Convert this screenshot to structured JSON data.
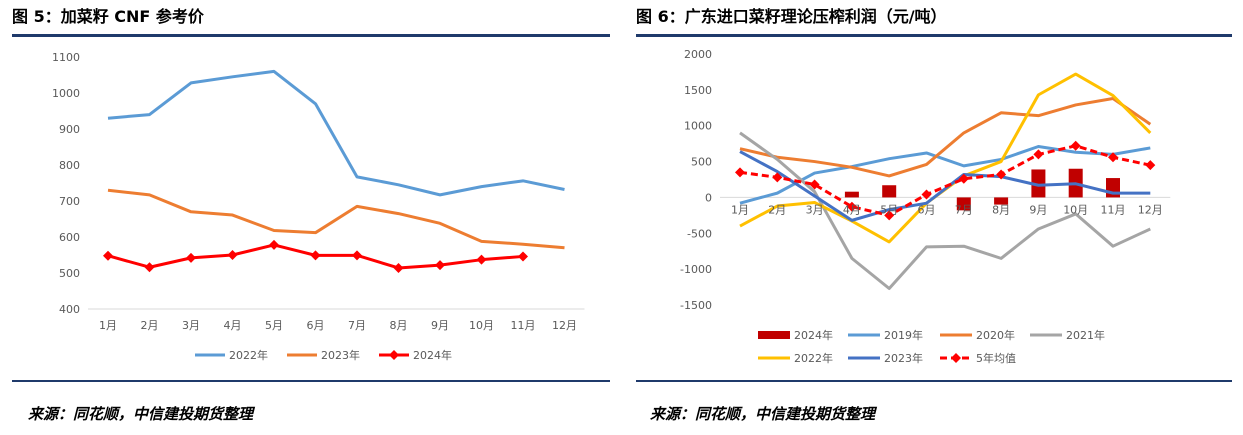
{
  "left": {
    "title": "图 5：加菜籽 CNF 参考价",
    "source": "来源：同花顺，中信建投期货整理"
  },
  "right": {
    "title": "图 6：广东进口菜籽理论压榨利润（元/吨）",
    "source": "来源：同花顺，中信建投期货整理"
  },
  "chart_data": [
    {
      "type": "line",
      "categories": [
        "1月",
        "2月",
        "3月",
        "4月",
        "5月",
        "6月",
        "7月",
        "8月",
        "9月",
        "10月",
        "11月",
        "12月"
      ],
      "ylim": [
        400,
        1100
      ],
      "yticks": [
        400,
        500,
        600,
        700,
        800,
        900,
        1000,
        1100
      ],
      "grid": false,
      "legend_position": "bottom",
      "series": [
        {
          "name": "2022年",
          "color": "#5b9bd5",
          "marker": "none",
          "values": [
            930,
            940,
            1028,
            1045,
            1060,
            970,
            767,
            745,
            717,
            740,
            756,
            732
          ]
        },
        {
          "name": "2023年",
          "color": "#ed7d31",
          "marker": "none",
          "values": [
            730,
            717,
            670,
            661,
            618,
            612,
            685,
            665,
            638,
            588,
            580,
            570
          ]
        },
        {
          "name": "2024年",
          "color": "#ff0000",
          "marker": "diamond",
          "values": [
            548,
            516,
            542,
            550,
            578,
            549,
            549,
            514,
            522,
            537,
            546,
            null
          ]
        }
      ]
    },
    {
      "type": "line",
      "categories": [
        "1月",
        "2月",
        "3月",
        "4月",
        "5月",
        "6月",
        "7月",
        "8月",
        "9月",
        "10月",
        "11月",
        "12月"
      ],
      "ylim": [
        -1500,
        2000
      ],
      "yticks": [
        -1500,
        -1000,
        -500,
        0,
        500,
        1000,
        1500,
        2000
      ],
      "grid": false,
      "legend_position": "bottom",
      "series": [
        {
          "name": "2024年",
          "type": "bar",
          "color": "#c00000",
          "values": [
            0,
            0,
            0,
            80,
            170,
            0,
            -180,
            -100,
            390,
            400,
            270,
            null
          ]
        },
        {
          "name": "2019年",
          "color": "#5b9bd5",
          "style": "solid",
          "values": [
            -80,
            60,
            340,
            430,
            540,
            620,
            440,
            530,
            710,
            630,
            600,
            690
          ]
        },
        {
          "name": "2020年",
          "color": "#ed7d31",
          "style": "solid",
          "values": [
            680,
            560,
            500,
            420,
            300,
            460,
            900,
            1180,
            1140,
            1290,
            1380,
            1020
          ]
        },
        {
          "name": "2021年",
          "color": "#a5a5a5",
          "style": "solid",
          "values": [
            900,
            530,
            80,
            -850,
            -1270,
            -690,
            -680,
            -850,
            -440,
            -230,
            -680,
            -440
          ]
        },
        {
          "name": "2022年",
          "color": "#ffc000",
          "style": "solid",
          "values": [
            -400,
            -120,
            -70,
            -330,
            -620,
            -80,
            300,
            500,
            1430,
            1720,
            1420,
            900
          ]
        },
        {
          "name": "2023年",
          "color": "#4472c4",
          "style": "solid",
          "values": [
            640,
            360,
            20,
            -320,
            -170,
            -80,
            320,
            290,
            170,
            190,
            60,
            60
          ]
        },
        {
          "name": "5年均值",
          "color": "#ff0000",
          "style": "dashed",
          "marker": "diamond",
          "values": [
            350,
            280,
            180,
            -130,
            -250,
            40,
            260,
            320,
            600,
            720,
            560,
            450
          ]
        }
      ]
    }
  ]
}
